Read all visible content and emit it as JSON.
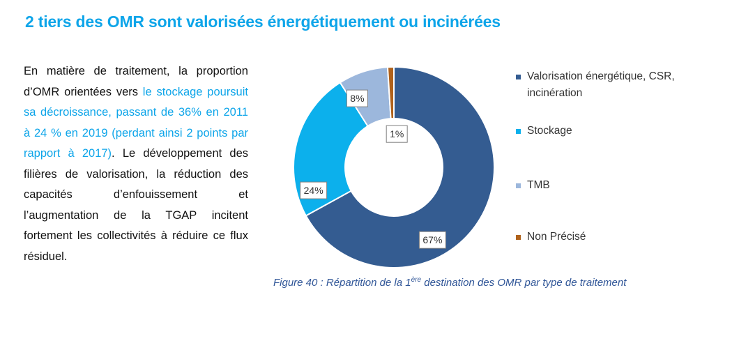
{
  "heading": "2 tiers des OMR sont valorisées énergétiquement ou incinérées",
  "body": {
    "part1": "En matière de traitement, la proportion d’OMR orientées vers ",
    "highlight": "le stockage poursuit sa décroissance, passant de 36% en 2011 à 24 % en 2019 (perdant ainsi 2 points par rapport à 2017)",
    "part2": ". Le développement des filières de valorisation, la réduction des capacités d’enfouissement et l’augmentation de la TGAP incitent fortement les collectivités à réduire ce flux résiduel."
  },
  "caption": {
    "prefix": "Figure 40 : Répartition de la 1",
    "sup": "ère",
    "suffix": " destination des OMR par type de traitement"
  },
  "chart_data": {
    "type": "pie",
    "donut": true,
    "series": [
      {
        "name": "Valorisation énergétique, CSR, incinération",
        "value": 67,
        "label": "67%",
        "color": "#345c91"
      },
      {
        "name": "Stockage",
        "value": 24,
        "label": "24%",
        "color": "#0cb0ec"
      },
      {
        "name": "TMB",
        "value": 8,
        "label": "8%",
        "color": "#9cb7dc"
      },
      {
        "name": "Non Précisé",
        "value": 1,
        "label": "1%",
        "color": "#b0621b"
      }
    ],
    "legend_position": "right"
  }
}
